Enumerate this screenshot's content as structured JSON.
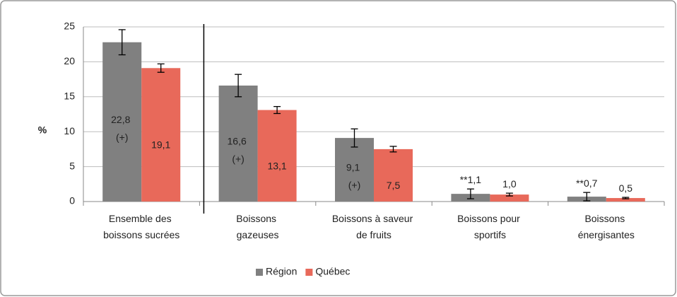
{
  "chart_data": {
    "type": "bar",
    "y_label": "%",
    "categories": [
      "Ensemble des boissons sucrées",
      "Boissons gazeuses",
      "Boissons à saveur de fruits",
      "Boissons pour sportifs",
      "Boissons énergisantes"
    ],
    "series": [
      {
        "name": "Région",
        "color": "#808080",
        "values": [
          22.8,
          16.6,
          9.1,
          1.1,
          0.7
        ],
        "errors": [
          1.8,
          1.6,
          1.3,
          0.7,
          0.6
        ],
        "value_labels": [
          "22,8 (+)",
          "16,6 (+)",
          "9,1 (+)",
          "**1,1",
          "**0,7"
        ]
      },
      {
        "name": "Québec",
        "color": "#e8695a",
        "values": [
          19.1,
          13.1,
          7.5,
          1.0,
          0.5
        ],
        "errors": [
          0.6,
          0.5,
          0.4,
          0.2,
          0.1
        ],
        "value_labels": [
          "19,1",
          "13,1",
          "7,5",
          "1,0",
          "0,5"
        ]
      }
    ],
    "ylim": [
      0,
      25
    ],
    "yticks": [
      0,
      5,
      10,
      15,
      20,
      25
    ],
    "grid": true,
    "legend": "bottom"
  }
}
